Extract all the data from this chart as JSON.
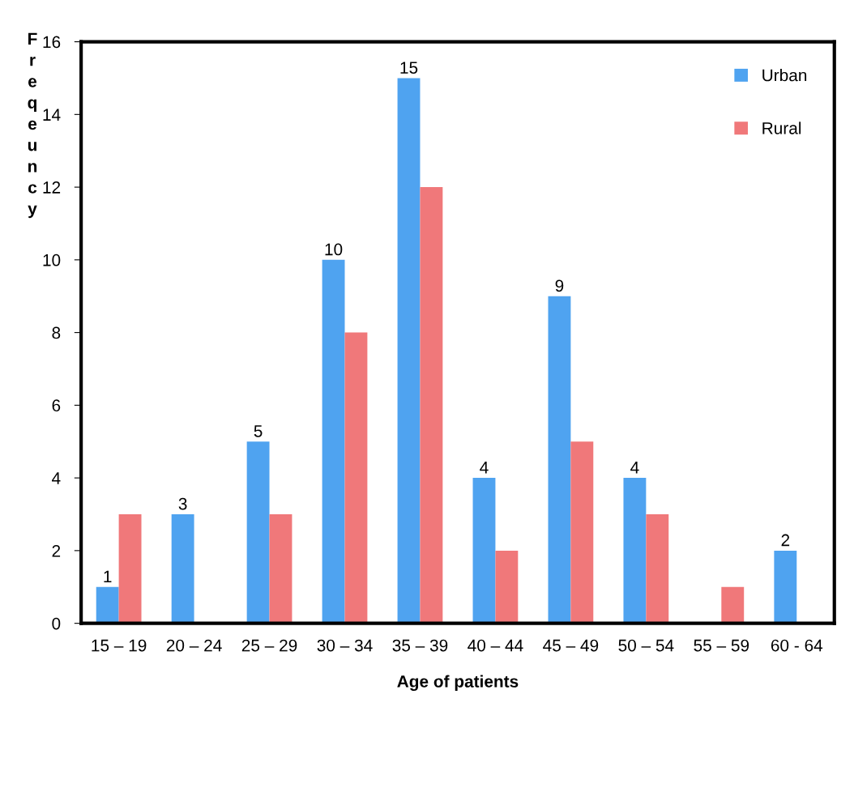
{
  "chart_data": {
    "type": "bar",
    "xlabel": "Age of patients",
    "ylabel": "Freqeuncy",
    "categories": [
      "15 – 19",
      "20 – 24",
      "25 – 29",
      "30 – 34",
      "35 – 39",
      "40 – 44",
      "45 – 49",
      "50 – 54",
      "55 – 59",
      "60 - 64"
    ],
    "series": [
      {
        "name": "Urban",
        "color": "#4fa3f0",
        "values": [
          1,
          3,
          5,
          10,
          15,
          4,
          9,
          4,
          0,
          2
        ],
        "value_labels": [
          "1",
          "3",
          "5",
          "10",
          "15",
          "4",
          "9",
          "4",
          null,
          "2"
        ]
      },
      {
        "name": "Rural",
        "color": "#f0787a",
        "values": [
          3,
          0,
          3,
          8,
          12,
          2,
          5,
          3,
          1,
          0
        ]
      }
    ],
    "ylim": [
      0,
      16
    ],
    "yticks": [
      0,
      2,
      4,
      6,
      8,
      10,
      12,
      14,
      16
    ],
    "grid": false,
    "legend": "top right"
  }
}
